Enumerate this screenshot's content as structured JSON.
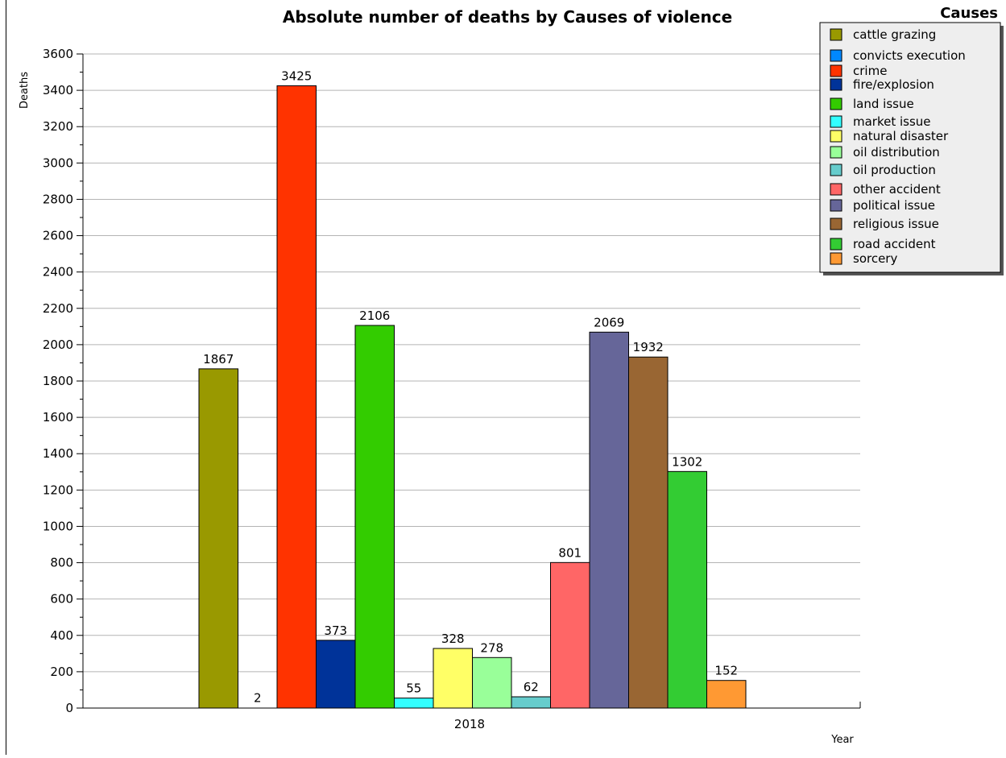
{
  "chart_data": {
    "type": "bar",
    "title": "Absolute number of deaths by Causes of violence",
    "xlabel": "Year",
    "ylabel": "Deaths",
    "categories": [
      "2018"
    ],
    "ylim": [
      0,
      3600
    ],
    "yticks": [
      "0",
      "200",
      "400",
      "600",
      "800",
      "1000",
      "1200",
      "1400",
      "1600",
      "1800",
      "2000",
      "2200",
      "2400",
      "2600",
      "2800",
      "3000",
      "3200",
      "3400",
      "3600"
    ],
    "grid": true,
    "legend_title": "Causes",
    "legend_position": "top-right",
    "series": [
      {
        "name": "cattle grazing",
        "values": [
          1867
        ],
        "color": "#999900",
        "label": "1867"
      },
      {
        "name": "convicts execution",
        "values": [
          2
        ],
        "color": "#0088ff",
        "label": "2"
      },
      {
        "name": "crime",
        "values": [
          3425
        ],
        "color": "#ff3300",
        "label": "3425"
      },
      {
        "name": "fire/explosion",
        "values": [
          373
        ],
        "color": "#003399",
        "label": "373"
      },
      {
        "name": "land issue",
        "values": [
          2106
        ],
        "color": "#33cc00",
        "label": "2106"
      },
      {
        "name": "market issue",
        "values": [
          55
        ],
        "color": "#33ffff",
        "label": "55"
      },
      {
        "name": "natural disaster",
        "values": [
          328
        ],
        "color": "#ffff66",
        "label": "328"
      },
      {
        "name": "oil distribution",
        "values": [
          278
        ],
        "color": "#99ff99",
        "label": "278"
      },
      {
        "name": "oil production",
        "values": [
          62
        ],
        "color": "#66cccc",
        "label": "62"
      },
      {
        "name": "other accident",
        "values": [
          801
        ],
        "color": "#ff6666",
        "label": "801"
      },
      {
        "name": "political issue",
        "values": [
          2069
        ],
        "color": "#666699",
        "label": "2069"
      },
      {
        "name": "religious issue",
        "values": [
          1932
        ],
        "color": "#996633",
        "label": "1932"
      },
      {
        "name": "road accident",
        "values": [
          1302
        ],
        "color": "#33cc33",
        "label": "1302"
      },
      {
        "name": "sorcery",
        "values": [
          152
        ],
        "color": "#ff9933",
        "label": "152"
      }
    ]
  }
}
